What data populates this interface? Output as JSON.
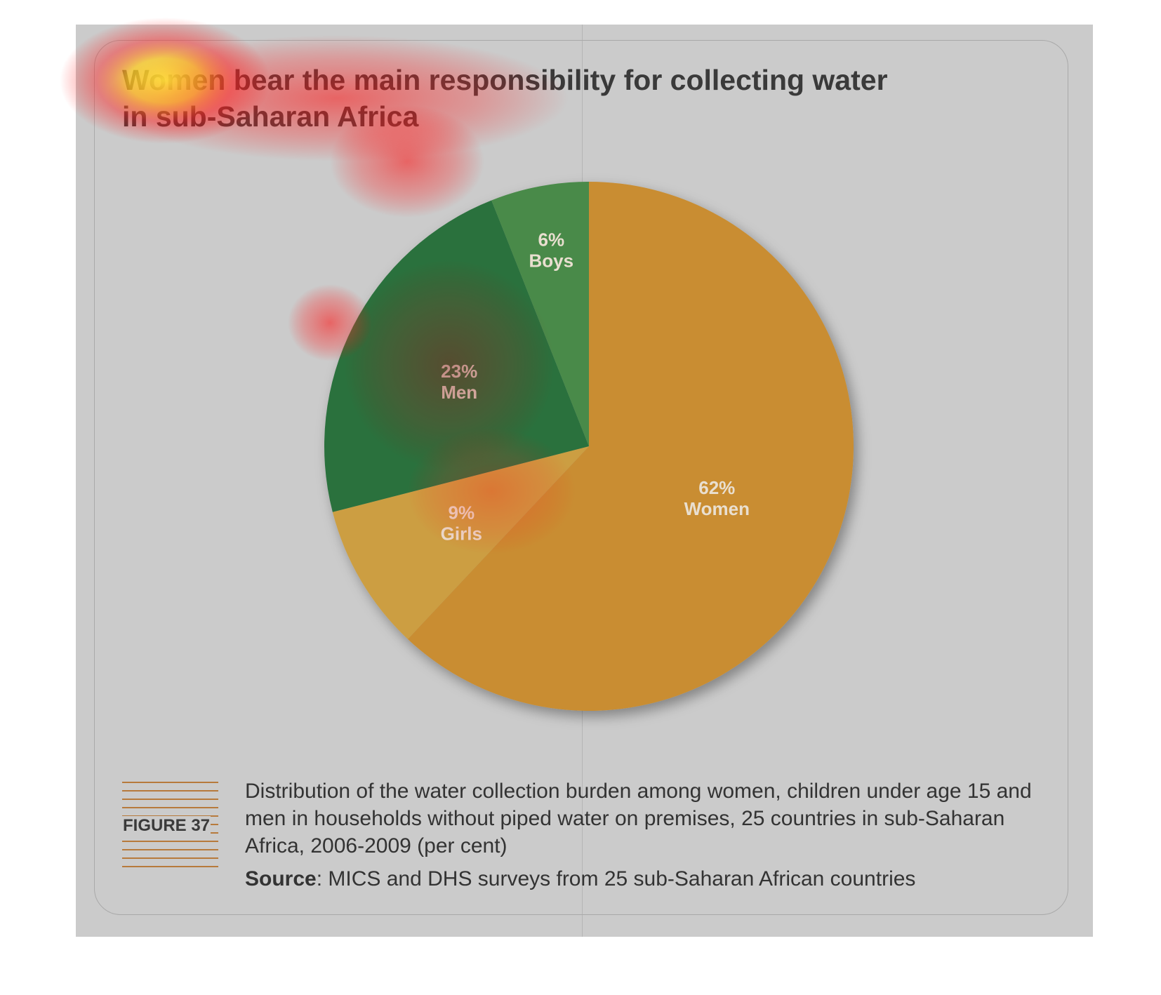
{
  "figure": {
    "title": "Women bear the main responsibility for collecting water in sub-Saharan Africa",
    "figure_label": "FIGURE 37",
    "caption": "Distribution of the water collection burden among women, children under age 15 and men in households without piped water on premises, 25 countries in sub-Saharan Africa, 2006-2009 (per cent)",
    "source_label": "Source",
    "source_text": ": MICS and DHS surveys from 25 sub-Saharan African countries"
  },
  "chart_data": {
    "type": "pie",
    "title": "Women bear the main responsibility for collecting water in sub-Saharan Africa",
    "start": "12 o'clock",
    "direction": "clockwise",
    "slices": [
      {
        "name": "Women",
        "value": 62,
        "value_label": "62%",
        "color": "#c98d30"
      },
      {
        "name": "Girls",
        "value": 9,
        "value_label": "9%",
        "color": "#cc9e42"
      },
      {
        "name": "Men",
        "value": 23,
        "value_label": "23%",
        "color": "#2c713e"
      },
      {
        "name": "Boys",
        "value": 6,
        "value_label": "6%",
        "color": "#4a8a4a"
      }
    ]
  }
}
